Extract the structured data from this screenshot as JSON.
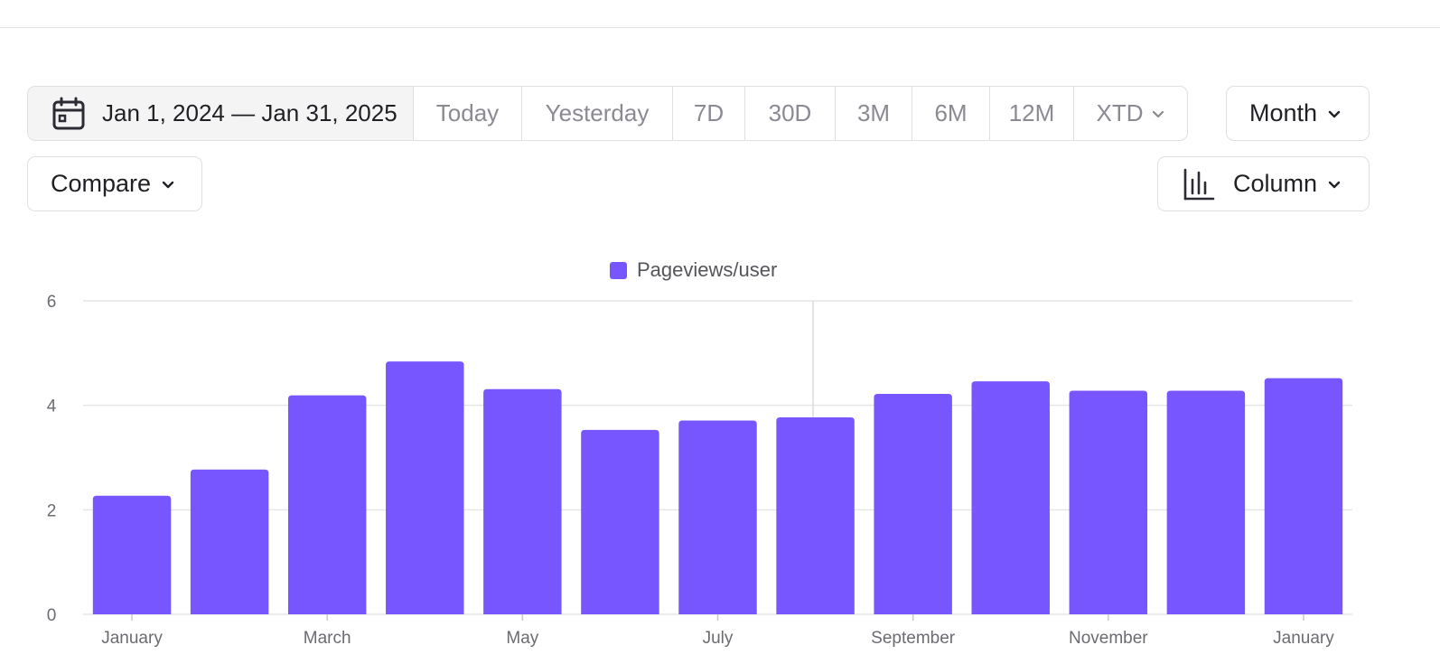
{
  "toolbar": {
    "date_range": "Jan 1, 2024 — Jan 31, 2025",
    "presets": [
      "Today",
      "Yesterday",
      "7D",
      "30D",
      "3M",
      "6M",
      "12M",
      "XTD"
    ],
    "interval": "Month",
    "compare": "Compare",
    "chart_type": "Column"
  },
  "icons": {
    "date": "calendar-icon",
    "chart_type": "bar-chart-icon",
    "dropdown": "chevron-down-icon"
  },
  "colors": {
    "series": "#7856ff",
    "grid": "#e6e6e9"
  },
  "chart_data": {
    "type": "bar",
    "legend": "top-center",
    "series": [
      {
        "name": "Pageviews/user",
        "values": [
          2.27,
          2.77,
          4.19,
          4.84,
          4.31,
          3.53,
          3.71,
          3.77,
          4.22,
          4.46,
          4.28,
          4.28,
          4.52
        ]
      }
    ],
    "x_tick_labels": [
      "January",
      "March",
      "May",
      "July",
      "September",
      "November",
      "January"
    ],
    "x_tick_positions": [
      0,
      2,
      4,
      6,
      8,
      10,
      12
    ],
    "ylim": [
      0,
      6
    ],
    "y_ticks": [
      "0",
      "2",
      "4",
      "6"
    ],
    "grid": true
  }
}
